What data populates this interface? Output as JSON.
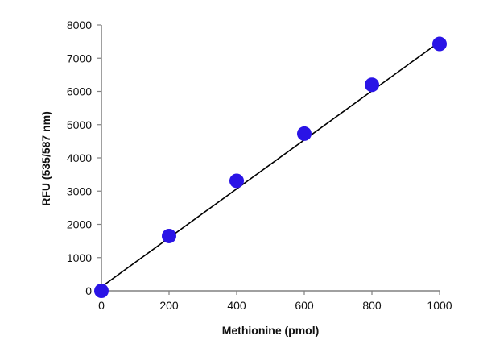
{
  "chart_data": {
    "type": "scatter",
    "title": "",
    "xlabel": "Methionine (pmol)",
    "ylabel": "RFU (535/587 nm)",
    "xlim": [
      0,
      1000
    ],
    "ylim": [
      0,
      8000
    ],
    "xticks": [
      0,
      200,
      400,
      600,
      800,
      1000
    ],
    "yticks": [
      0,
      1000,
      2000,
      3000,
      4000,
      5000,
      6000,
      7000,
      8000
    ],
    "grid": false,
    "points": {
      "x": [
        0,
        200,
        400,
        600,
        800,
        1000
      ],
      "y": [
        0,
        1650,
        3310,
        4730,
        6200,
        7430
      ]
    },
    "trendline": {
      "x": [
        0,
        1000
      ],
      "y": [
        120,
        7490
      ]
    },
    "colors": {
      "points": "#2a14e6",
      "line": "#000000",
      "axis": "#808080"
    }
  }
}
